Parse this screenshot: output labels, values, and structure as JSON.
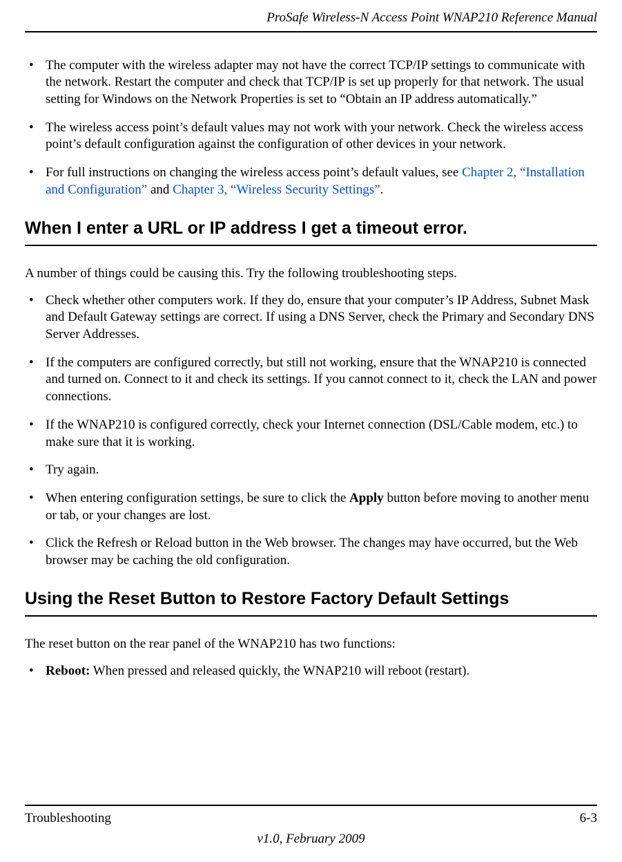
{
  "header": {
    "doc_title": "ProSafe Wireless-N Access Point WNAP210 Reference Manual"
  },
  "block1": {
    "b1": "The computer with the wireless adapter may not have the correct TCP/IP settings to communicate with the network. Restart the computer and check that TCP/IP is set up properly for that network. The usual setting for Windows on the Network Properties is set to “Obtain an IP address automatically.”",
    "b2": "The wireless access point’s default values may not work with your network. Check the wireless access point’s default configuration against the configuration of other devices in your network.",
    "b3_pre": "For full instructions on changing the wireless access point’s default values, see ",
    "b3_link1": "Chapter 2, “Installation and Configuration”",
    "b3_mid": " and ",
    "b3_link2": "Chapter 3, “Wireless Security Settings”",
    "b3_post": "."
  },
  "heading1": "When I enter a URL or IP address I get a timeout error.",
  "para1": "A number of things could be causing this. Try the following troubleshooting steps.",
  "block2": {
    "b1": "Check whether other computers work. If they do, ensure that your computer’s IP Address, Subnet Mask and Default Gateway settings are correct. If using a DNS Server, check the Primary and Secondary DNS Server Addresses.",
    "b2": "If the computers are configured correctly, but still not working, ensure that the WNAP210 is connected and turned on. Connect to it and check its settings. If you cannot connect to it, check the LAN and power connections.",
    "b3": "If the WNAP210 is configured correctly, check your Internet connection (DSL/Cable modem, etc.) to make sure that it is working.",
    "b4": "Try again.",
    "b5_pre": "When entering configuration settings, be sure to click the ",
    "b5_bold": "Apply",
    "b5_post": " button before moving to another menu or tab, or your changes are lost.",
    "b6": "Click the Refresh or Reload button in the Web browser. The changes may have occurred, but the Web browser may be caching the old configuration."
  },
  "heading2": "Using the Reset Button to Restore Factory Default Settings",
  "para2": "The reset button on the rear panel of the WNAP210 has two functions:",
  "block3": {
    "b1_bold": "Reboot:",
    "b1_post": " When pressed and released quickly, the WNAP210 will reboot (restart)."
  },
  "footer": {
    "section": "Troubleshooting",
    "page": "6-3",
    "version": "v1.0, February 2009"
  },
  "colors": {
    "text": "#000000",
    "link": "#0050d0",
    "background": "#ffffff",
    "rule": "#000000"
  },
  "typography": {
    "body_font": "Times New Roman",
    "body_size_pt": 14,
    "heading_font": "Arial",
    "heading_size_pt": 19,
    "heading_weight": "bold"
  }
}
